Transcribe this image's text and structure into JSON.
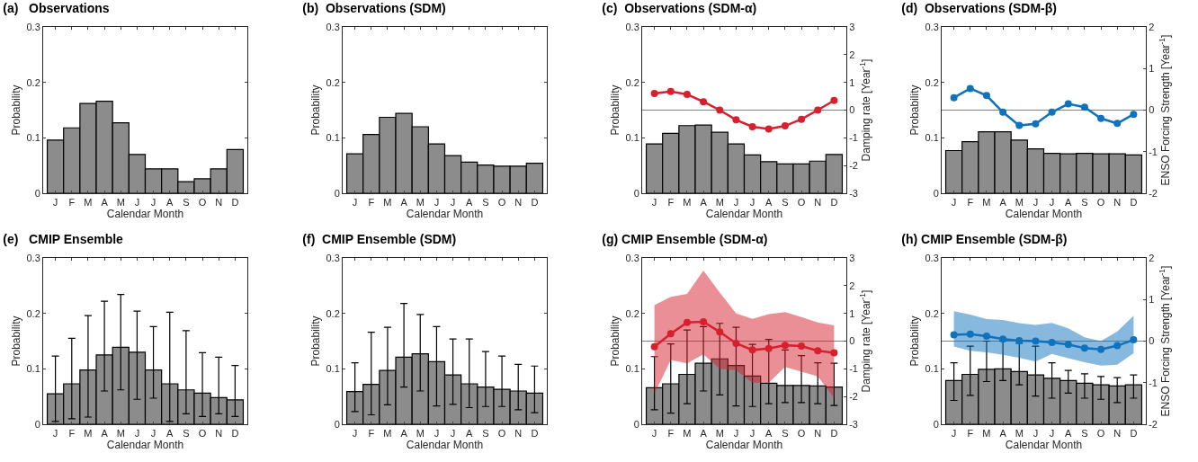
{
  "chart_data": [
    {
      "type": "bar",
      "title": "(a)   Observations",
      "xlabel": "Calendar Month",
      "ylabel": "Probability",
      "categories": [
        "J",
        "F",
        "M",
        "A",
        "M",
        "J",
        "J",
        "A",
        "S",
        "O",
        "N",
        "D"
      ],
      "ylim": [
        0,
        0.3
      ],
      "yticks": [
        0,
        0.1,
        0.2,
        0.3
      ],
      "series": [
        {
          "color": "#8c8c8c",
          "values": [
            0.096,
            0.118,
            0.162,
            0.166,
            0.127,
            0.07,
            0.044,
            0.044,
            0.021,
            0.026,
            0.044,
            0.079
          ]
        }
      ]
    },
    {
      "type": "bar",
      "title": "(b)  Observations (SDM)",
      "xlabel": "Calendar Month",
      "ylabel": "Probability",
      "categories": [
        "J",
        "F",
        "M",
        "A",
        "M",
        "J",
        "J",
        "A",
        "S",
        "O",
        "N",
        "D"
      ],
      "ylim": [
        0,
        0.3
      ],
      "yticks": [
        0,
        0.1,
        0.2,
        0.3
      ],
      "series": [
        {
          "color": "#8c8c8c",
          "values": [
            0.071,
            0.106,
            0.137,
            0.144,
            0.12,
            0.089,
            0.068,
            0.056,
            0.051,
            0.049,
            0.049,
            0.054
          ]
        }
      ]
    },
    {
      "type": "bar",
      "title": "(c)  Observations (SDM-α)",
      "xlabel": "Calendar Month",
      "ylabel": "Probability",
      "y2label": "Damping rate [Year$^{-1}$]",
      "categories": [
        "J",
        "F",
        "M",
        "A",
        "M",
        "J",
        "J",
        "A",
        "S",
        "O",
        "N",
        "D"
      ],
      "ylim": [
        0,
        0.3
      ],
      "yticks": [
        0,
        0.1,
        0.2,
        0.3
      ],
      "y2lim": [
        -3,
        3
      ],
      "y2ticks": [
        -3,
        -2,
        -1,
        0,
        1,
        2,
        3
      ],
      "marker": "circle",
      "ref_lines": [
        {
          "axis": "y2",
          "value": 0,
          "color": "#808080"
        }
      ],
      "series": [
        {
          "color": "#8c8c8c",
          "values": [
            0.089,
            0.108,
            0.122,
            0.123,
            0.11,
            0.089,
            0.069,
            0.057,
            0.053,
            0.053,
            0.058,
            0.07
          ]
        },
        {
          "type": "line",
          "axis": "y2",
          "color": "#d7202e",
          "values": [
            0.6,
            0.67,
            0.57,
            0.3,
            0,
            -0.35,
            -0.6,
            -0.68,
            -0.57,
            -0.33,
            0,
            0.35
          ]
        }
      ]
    },
    {
      "type": "bar",
      "title": "(d)  Observations (SDM-β)",
      "xlabel": "Calendar Month",
      "ylabel": "Probability",
      "y2label": "ENSO Forcing Strength [Year$^{-1}$]",
      "categories": [
        "J",
        "F",
        "M",
        "A",
        "M",
        "J",
        "J",
        "A",
        "S",
        "O",
        "N",
        "D"
      ],
      "ylim": [
        0,
        0.3
      ],
      "yticks": [
        0,
        0.1,
        0.2,
        0.3
      ],
      "y2lim": [
        -2,
        2
      ],
      "y2ticks": [
        -2,
        -1,
        0,
        1,
        2
      ],
      "marker": "circle",
      "ref_lines": [
        {
          "axis": "y2",
          "value": 0,
          "color": "#808080"
        }
      ],
      "series": [
        {
          "color": "#8c8c8c",
          "values": [
            0.077,
            0.093,
            0.111,
            0.111,
            0.096,
            0.08,
            0.072,
            0.071,
            0.072,
            0.071,
            0.071,
            0.069
          ]
        },
        {
          "type": "line",
          "axis": "y2",
          "color": "#0f72bd",
          "values": [
            0.3,
            0.52,
            0.35,
            -0.05,
            -0.37,
            -0.33,
            -0.05,
            0.15,
            0.07,
            -0.2,
            -0.32,
            -0.1
          ]
        }
      ]
    },
    {
      "type": "bar",
      "title": "(e)   CMIP Ensemble",
      "xlabel": "Calendar Month",
      "ylabel": "Probability",
      "categories": [
        "J",
        "F",
        "M",
        "A",
        "M",
        "J",
        "J",
        "A",
        "S",
        "O",
        "N",
        "D"
      ],
      "ylim": [
        0,
        0.3
      ],
      "yticks": [
        0,
        0.1,
        0.2,
        0.3
      ],
      "series": [
        {
          "color": "#8c8c8c",
          "values": [
            0.055,
            0.073,
            0.098,
            0.125,
            0.139,
            0.13,
            0.098,
            0.073,
            0.062,
            0.056,
            0.048,
            0.044
          ],
          "errors": [
            [
              0.005,
              0.123
            ],
            [
              0.01,
              0.155
            ],
            [
              0.013,
              0.196
            ],
            [
              0.06,
              0.222
            ],
            [
              0.062,
              0.234
            ],
            [
              0.045,
              0.204
            ],
            [
              0.047,
              0.176
            ],
            [
              0.005,
              0.202
            ],
            [
              0.019,
              0.169
            ],
            [
              0.014,
              0.129
            ],
            [
              0.019,
              0.121
            ],
            [
              0.014,
              0.106
            ]
          ]
        }
      ]
    },
    {
      "type": "bar",
      "title": "(f)  CMIP Ensemble (SDM)",
      "xlabel": "Calendar Month",
      "ylabel": "Probability",
      "categories": [
        "J",
        "F",
        "M",
        "A",
        "M",
        "J",
        "J",
        "A",
        "S",
        "O",
        "N",
        "D"
      ],
      "ylim": [
        0,
        0.3
      ],
      "yticks": [
        0,
        0.1,
        0.2,
        0.3
      ],
      "series": [
        {
          "color": "#8c8c8c",
          "values": [
            0.059,
            0.072,
            0.097,
            0.121,
            0.127,
            0.113,
            0.089,
            0.073,
            0.067,
            0.063,
            0.06,
            0.056
          ],
          "errors": [
            [
              0.023,
              0.111
            ],
            [
              0.017,
              0.166
            ],
            [
              0.035,
              0.175
            ],
            [
              0.067,
              0.218
            ],
            [
              0.06,
              0.198
            ],
            [
              0.033,
              0.176
            ],
            [
              0.036,
              0.154
            ],
            [
              0.03,
              0.154
            ],
            [
              0.032,
              0.131
            ],
            [
              0.032,
              0.123
            ],
            [
              0.026,
              0.108
            ],
            [
              0.021,
              0.105
            ]
          ]
        }
      ]
    },
    {
      "type": "bar",
      "title": "(g) CMIP Ensemble (SDM-α)",
      "xlabel": "Calendar Month",
      "ylabel": "Probability",
      "y2label": "Damping rate [Year$^{-1}$]",
      "categories": [
        "J",
        "F",
        "M",
        "A",
        "M",
        "J",
        "J",
        "A",
        "S",
        "O",
        "N",
        "D"
      ],
      "ylim": [
        0,
        0.3
      ],
      "yticks": [
        0,
        0.1,
        0.2,
        0.3
      ],
      "y2lim": [
        -3,
        3
      ],
      "y2ticks": [
        -3,
        -2,
        -1,
        0,
        1,
        2,
        3
      ],
      "marker": "circle",
      "ref_lines": [
        {
          "axis": "y2",
          "value": 0,
          "color": "#808080"
        }
      ],
      "series": [
        {
          "color": "#8c8c8c",
          "values": [
            0.066,
            0.073,
            0.09,
            0.11,
            0.118,
            0.106,
            0.087,
            0.074,
            0.07,
            0.07,
            0.069,
            0.067
          ],
          "errors": [
            [
              0.026,
              0.122
            ],
            [
              0.02,
              0.145
            ],
            [
              0.037,
              0.17
            ],
            [
              0.06,
              0.176
            ],
            [
              0.053,
              0.182
            ],
            [
              0.033,
              0.175
            ],
            [
              0.032,
              0.144
            ],
            [
              0.037,
              0.153
            ],
            [
              0.039,
              0.134
            ],
            [
              0.039,
              0.124
            ],
            [
              0.037,
              0.111
            ],
            [
              0.034,
              0.11
            ]
          ]
        },
        {
          "type": "line",
          "axis": "y2",
          "color": "#d7202e",
          "values": [
            -0.2,
            0.27,
            0.67,
            0.7,
            0.33,
            -0.08,
            -0.32,
            -0.27,
            -0.15,
            -0.18,
            -0.35,
            -0.42
          ],
          "lower": [
            -1.9,
            -0.68,
            -0.8,
            -0.48,
            -1.0,
            -1.05,
            -1.5,
            -1.5,
            -0.93,
            -1.1,
            -1.27,
            -2.05
          ],
          "upper": [
            1.3,
            1.6,
            1.7,
            2.55,
            1.75,
            1.0,
            0.8,
            0.97,
            1.05,
            0.87,
            0.67,
            0.57
          ]
        }
      ]
    },
    {
      "type": "bar",
      "title": "(h) CMIP Ensemble (SDM-β)",
      "xlabel": "Calendar Month",
      "ylabel": "Probability",
      "y2label": "ENSO Forcing Strength [Year$^{-1}$]",
      "categories": [
        "J",
        "F",
        "M",
        "A",
        "M",
        "J",
        "J",
        "A",
        "S",
        "O",
        "N",
        "D"
      ],
      "ylim": [
        0,
        0.3
      ],
      "yticks": [
        0,
        0.1,
        0.2,
        0.3
      ],
      "y2lim": [
        -2,
        2
      ],
      "y2ticks": [
        -2,
        -1,
        0,
        1,
        2
      ],
      "marker": "circle",
      "ref_lines": [
        {
          "axis": "y2",
          "value": 0,
          "color": "#808080"
        }
      ],
      "series": [
        {
          "color": "#8c8c8c",
          "values": [
            0.079,
            0.09,
            0.099,
            0.1,
            0.095,
            0.089,
            0.083,
            0.079,
            0.074,
            0.071,
            0.069,
            0.071
          ],
          "errors": [
            [
              0.043,
              0.111
            ],
            [
              0.052,
              0.141
            ],
            [
              0.077,
              0.15
            ],
            [
              0.079,
              0.15
            ],
            [
              0.071,
              0.146
            ],
            [
              0.051,
              0.141
            ],
            [
              0.047,
              0.111
            ],
            [
              0.056,
              0.097
            ],
            [
              0.047,
              0.091
            ],
            [
              0.045,
              0.086
            ],
            [
              0.039,
              0.084
            ],
            [
              0.047,
              0.089
            ]
          ]
        },
        {
          "type": "line",
          "axis": "y2",
          "color": "#0f72bd",
          "values": [
            0.15,
            0.17,
            0.12,
            0.05,
            0.01,
            0,
            -0.03,
            -0.08,
            -0.17,
            -0.2,
            -0.11,
            0.03
          ],
          "lower": [
            -0.13,
            -0.23,
            -0.27,
            -0.33,
            -0.4,
            -0.49,
            -0.31,
            -0.41,
            -0.51,
            -0.59,
            -0.57,
            -0.29
          ],
          "upper": [
            0.72,
            0.64,
            0.53,
            0.51,
            0.43,
            0.39,
            0.44,
            0.31,
            0.09,
            0,
            0.23,
            0.61
          ]
        }
      ]
    }
  ]
}
